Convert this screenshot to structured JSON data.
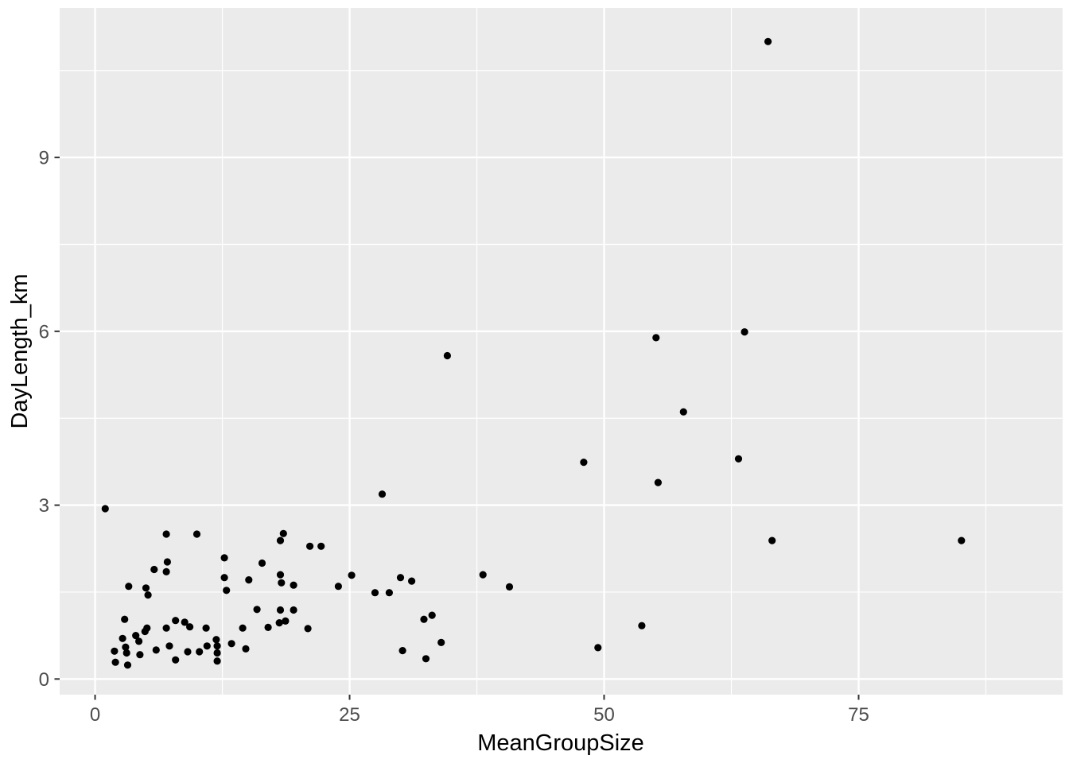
{
  "chart_data": {
    "type": "scatter",
    "title": "",
    "xlabel": "MeanGroupSize",
    "ylabel": "DayLength_km",
    "x_ticks": [
      0,
      25,
      50,
      75
    ],
    "x_tick_labels": [
      "0",
      "25",
      "50",
      "75"
    ],
    "y_ticks": [
      0,
      3,
      6,
      9
    ],
    "y_tick_labels": [
      "0",
      "3",
      "6",
      "9"
    ],
    "x_minor_ticks": [
      12.5,
      37.5,
      62.5,
      87.5
    ],
    "y_minor_ticks": [
      1.5,
      4.5,
      7.5,
      10.5
    ],
    "xlim": [
      -3.48,
      95.04
    ],
    "ylim": [
      -0.27,
      11.58
    ],
    "grid": "major-and-minor",
    "legend_position": "none",
    "colors": {
      "panel_background": "#EBEBEB",
      "grid_line": "#FFFFFF",
      "point": "#000000",
      "tick_mark": "#333333",
      "tick_text": "#4D4D4D",
      "axis_title_text": "#000000"
    },
    "points": [
      [
        1.0,
        2.94
      ],
      [
        66.1,
        11.0
      ],
      [
        55.1,
        5.89
      ],
      [
        63.8,
        5.99
      ],
      [
        34.6,
        5.58
      ],
      [
        57.8,
        4.61
      ],
      [
        48.0,
        3.74
      ],
      [
        63.2,
        3.8
      ],
      [
        55.3,
        3.39
      ],
      [
        28.2,
        3.19
      ],
      [
        66.5,
        2.39
      ],
      [
        85.1,
        2.39
      ],
      [
        53.7,
        0.92
      ],
      [
        49.4,
        0.54
      ],
      [
        38.1,
        1.8
      ],
      [
        40.7,
        1.59
      ],
      [
        30.0,
        1.75
      ],
      [
        31.1,
        1.69
      ],
      [
        27.5,
        1.49
      ],
      [
        28.9,
        1.49
      ],
      [
        32.3,
        1.03
      ],
      [
        33.1,
        1.1
      ],
      [
        30.2,
        0.49
      ],
      [
        32.5,
        0.35
      ],
      [
        34.0,
        0.63
      ],
      [
        25.2,
        1.79
      ],
      [
        23.9,
        1.6
      ],
      [
        7.0,
        2.5
      ],
      [
        10.0,
        2.5
      ],
      [
        7.1,
        2.02
      ],
      [
        5.8,
        1.89
      ],
      [
        7.0,
        1.85
      ],
      [
        3.3,
        1.6
      ],
      [
        5.0,
        1.57
      ],
      [
        5.2,
        1.45
      ],
      [
        12.7,
        2.09
      ],
      [
        12.7,
        1.75
      ],
      [
        12.9,
        1.53
      ],
      [
        18.5,
        2.51
      ],
      [
        18.2,
        2.39
      ],
      [
        21.1,
        2.29
      ],
      [
        22.2,
        2.29
      ],
      [
        16.4,
        2.0
      ],
      [
        15.1,
        1.71
      ],
      [
        18.2,
        1.8
      ],
      [
        18.3,
        1.66
      ],
      [
        19.5,
        1.62
      ],
      [
        2.9,
        1.03
      ],
      [
        2.7,
        0.7
      ],
      [
        3.0,
        0.55
      ],
      [
        3.1,
        0.45
      ],
      [
        3.2,
        0.24
      ],
      [
        1.9,
        0.48
      ],
      [
        2.0,
        0.29
      ],
      [
        4.0,
        0.75
      ],
      [
        4.3,
        0.65
      ],
      [
        4.9,
        0.82
      ],
      [
        5.1,
        0.88
      ],
      [
        4.4,
        0.42
      ],
      [
        6.0,
        0.5
      ],
      [
        7.0,
        0.88
      ],
      [
        7.3,
        0.57
      ],
      [
        7.9,
        1.01
      ],
      [
        8.8,
        0.98
      ],
      [
        9.3,
        0.9
      ],
      [
        7.9,
        0.33
      ],
      [
        9.1,
        0.47
      ],
      [
        10.25,
        0.47
      ],
      [
        10.9,
        0.88
      ],
      [
        11.0,
        0.57
      ],
      [
        11.9,
        0.68
      ],
      [
        12.0,
        0.57
      ],
      [
        12.0,
        0.45
      ],
      [
        12.0,
        0.31
      ],
      [
        13.4,
        0.61
      ],
      [
        14.5,
        0.88
      ],
      [
        14.8,
        0.52
      ],
      [
        17.0,
        0.89
      ],
      [
        18.1,
        0.97
      ],
      [
        18.7,
        1.0
      ],
      [
        20.9,
        0.87
      ],
      [
        15.9,
        1.2
      ],
      [
        18.2,
        1.19
      ],
      [
        19.5,
        1.19
      ]
    ]
  }
}
